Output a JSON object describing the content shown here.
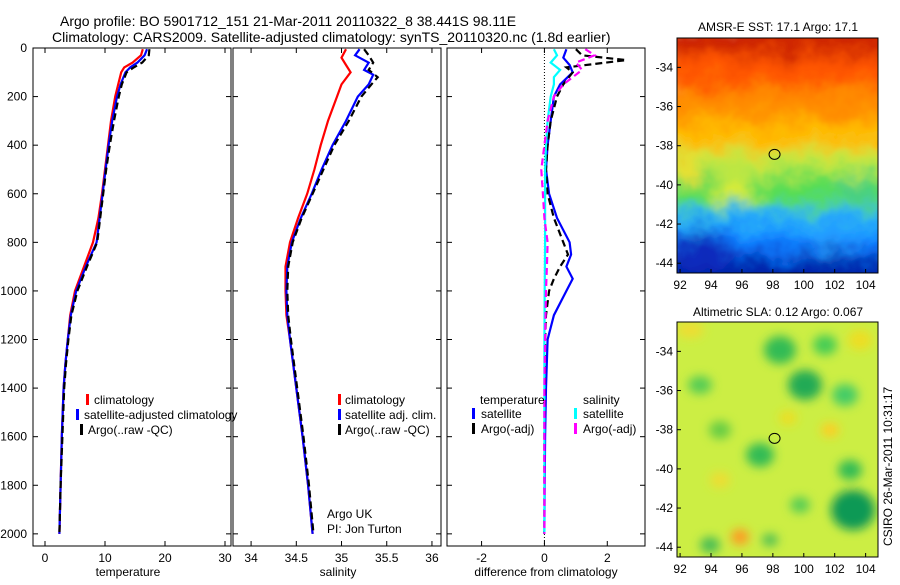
{
  "figure": {
    "title_line1": "Argo profile: BO 5901712_151 21-Mar-2011 20110322_8 38.441S 98.11E",
    "title_line2": "Climatology: CARS2009. Satellite-adjusted climatology: synTS_20110320.nc (1.8d earlier)",
    "credit": "CSIRO 26-Mar-2011 10:31:17",
    "argo_note_line1": "Argo UK",
    "argo_note_line2": "PI: Jon Turton"
  },
  "colors": {
    "climatology": "#ff0000",
    "satellite": "#0000ff",
    "argo": "#000000",
    "satellite_salinity": "#00ffff",
    "argo_salinity": "#ff00ff"
  },
  "chart_data": [
    {
      "type": "line",
      "xlabel": "temperature",
      "ylabel": "",
      "xlim": [
        -2,
        31
      ],
      "ylim": [
        2050,
        0
      ],
      "x_ticks": [
        0,
        10,
        20,
        30
      ],
      "y_ticks": [
        0,
        200,
        400,
        600,
        800,
        1000,
        1200,
        1400,
        1600,
        1800,
        2000
      ],
      "legend": [
        "climatology",
        "satellite-adjusted climatology",
        "Argo(..raw -QC)"
      ],
      "series": [
        {
          "name": "climatology",
          "color": "#ff0000",
          "depth": [
            5,
            30,
            60,
            80,
            100,
            150,
            200,
            300,
            400,
            500,
            600,
            700,
            800,
            900,
            1000,
            1100,
            1200,
            1300,
            1400,
            1600,
            1800,
            2000
          ],
          "values": [
            16.3,
            16.0,
            14.6,
            13.2,
            12.7,
            12.2,
            11.7,
            11.0,
            10.5,
            10.0,
            9.5,
            8.9,
            8.0,
            6.5,
            5.0,
            4.2,
            3.8,
            3.4,
            3.1,
            2.8,
            2.6,
            2.4
          ]
        },
        {
          "name": "satellite-adjusted climatology",
          "color": "#0000ff",
          "depth": [
            5,
            30,
            60,
            80,
            100,
            150,
            200,
            300,
            400,
            500,
            600,
            700,
            800,
            900,
            1000,
            1100,
            1200,
            1300,
            1400,
            1600,
            1800,
            2000
          ],
          "values": [
            17.0,
            16.6,
            15.4,
            14.2,
            13.4,
            12.6,
            12.0,
            11.2,
            10.6,
            10.1,
            9.6,
            9.1,
            8.6,
            6.8,
            5.2,
            4.3,
            3.8,
            3.4,
            3.1,
            2.8,
            2.6,
            2.4
          ]
        },
        {
          "name": "Argo(..raw -QC)",
          "color": "#000000",
          "depth": [
            5,
            30,
            60,
            80,
            100,
            150,
            200,
            300,
            400,
            500,
            600,
            700,
            800,
            900,
            1000,
            1100,
            1200,
            1300,
            1400,
            1600,
            1800,
            2000
          ],
          "values": [
            17.4,
            17.3,
            16.2,
            14.8,
            13.6,
            12.8,
            12.3,
            11.5,
            10.8,
            10.2,
            9.7,
            9.2,
            8.7,
            7.0,
            5.4,
            4.4,
            3.9,
            3.5,
            3.2,
            2.9,
            2.6,
            2.4
          ]
        }
      ]
    },
    {
      "type": "line",
      "xlabel": "salinity",
      "ylabel": "",
      "xlim": [
        33.8,
        36.1
      ],
      "ylim": [
        2050,
        0
      ],
      "x_ticks": [
        34,
        34.5,
        35,
        35.5,
        36
      ],
      "legend": [
        "climatology",
        "satellite adj. clim.",
        "Argo(..raw -QC)"
      ],
      "series": [
        {
          "name": "climatology",
          "color": "#ff0000",
          "depth": [
            5,
            40,
            70,
            100,
            150,
            200,
            300,
            400,
            500,
            600,
            700,
            800,
            900,
            1000,
            1100,
            1200,
            1400,
            1600,
            1800,
            2000
          ],
          "values": [
            35.05,
            35.0,
            35.05,
            35.1,
            35.0,
            34.95,
            34.85,
            34.77,
            34.7,
            34.62,
            34.52,
            34.43,
            34.38,
            34.38,
            34.39,
            34.43,
            34.5,
            34.57,
            34.63,
            34.68
          ]
        },
        {
          "name": "satellite adj. clim.",
          "color": "#0000ff",
          "depth": [
            5,
            30,
            60,
            90,
            110,
            150,
            200,
            300,
            400,
            500,
            600,
            700,
            800,
            900,
            1000,
            1100,
            1200,
            1400,
            1600,
            1800,
            2000
          ],
          "values": [
            35.2,
            35.15,
            35.3,
            35.25,
            35.35,
            35.3,
            35.18,
            35.05,
            34.9,
            34.78,
            34.67,
            34.55,
            34.45,
            34.4,
            34.39,
            34.4,
            34.43,
            34.5,
            34.57,
            34.63,
            34.68
          ]
        },
        {
          "name": "Argo(..raw -QC)",
          "color": "#000000",
          "depth": [
            5,
            30,
            60,
            90,
            120,
            150,
            200,
            300,
            400,
            500,
            600,
            700,
            800,
            900,
            1000,
            1100,
            1200,
            1400,
            1600,
            1800,
            2000
          ],
          "values": [
            35.25,
            35.3,
            35.35,
            35.3,
            35.4,
            35.33,
            35.22,
            35.08,
            34.92,
            34.8,
            34.68,
            34.56,
            34.46,
            34.41,
            34.4,
            34.41,
            34.44,
            34.51,
            34.58,
            34.64,
            34.69
          ]
        }
      ]
    },
    {
      "type": "line",
      "xlabel": "difference from climatology",
      "ylabel": "",
      "xlim": [
        -3.1,
        3.2
      ],
      "ylim": [
        2050,
        0
      ],
      "x_ticks": [
        -2,
        0,
        2
      ],
      "legend_groups": [
        "temperature",
        "salinity"
      ],
      "legend": [
        "satellite",
        "Argo(-adj)",
        "satellite",
        "Argo(-adj)"
      ],
      "series": [
        {
          "name": "satellite",
          "group": "temperature",
          "color": "#0000ff",
          "depth": [
            5,
            40,
            70,
            100,
            150,
            200,
            300,
            400,
            500,
            600,
            700,
            800,
            850,
            900,
            950,
            1000,
            1100,
            1200,
            1400,
            1600,
            1800,
            2000
          ],
          "values": [
            0.7,
            0.6,
            0.8,
            0.9,
            0.5,
            0.3,
            0.2,
            0.1,
            0.05,
            0.15,
            0.4,
            0.8,
            0.85,
            0.7,
            0.9,
            0.7,
            0.3,
            0.1,
            0.05,
            0.02,
            0.01,
            0.0
          ]
        },
        {
          "name": "Argo(-adj)",
          "group": "temperature",
          "color": "#000000",
          "depth": [
            5,
            30,
            50,
            80,
            100,
            150,
            200,
            300,
            400,
            500,
            600,
            700,
            800,
            850,
            900,
            950,
            1000,
            1100,
            1200,
            1400,
            1600,
            1800,
            2000
          ],
          "values": [
            1.0,
            1.2,
            2.6,
            0.7,
            0.9,
            0.6,
            0.4,
            0.2,
            0.1,
            0.05,
            0.1,
            0.3,
            0.6,
            0.75,
            0.5,
            0.3,
            0.15,
            0.05,
            0.02,
            0.01,
            0.0,
            0.0,
            0.0
          ]
        },
        {
          "name": "satellite",
          "group": "salinity",
          "color": "#00ffff",
          "depth": [
            5,
            30,
            60,
            90,
            120,
            150,
            200,
            300,
            400,
            500,
            600,
            700,
            800,
            1000,
            1200,
            1400,
            1600,
            1800,
            2000
          ],
          "values": [
            0.3,
            0.4,
            0.2,
            0.5,
            0.3,
            0.3,
            0.2,
            0.1,
            0.05,
            0.02,
            0.02,
            0.02,
            0.02,
            0.01,
            0.0,
            0.0,
            0.0,
            0.0,
            0.0
          ]
        },
        {
          "name": "Argo(-adj)",
          "group": "salinity",
          "color": "#ff00ff",
          "depth": [
            5,
            30,
            60,
            90,
            120,
            150,
            200,
            300,
            400,
            500,
            600,
            700,
            800,
            900,
            1000,
            1200,
            1400,
            1600,
            1800,
            2000
          ],
          "values": [
            1.3,
            1.6,
            1.0,
            1.2,
            0.9,
            0.6,
            0.3,
            0.1,
            0.0,
            -0.1,
            -0.05,
            0.0,
            0.1,
            0.08,
            0.05,
            0.02,
            0.0,
            0.0,
            0.0,
            0.0
          ]
        }
      ]
    },
    {
      "type": "heatmap",
      "title": "AMSR-E SST: 17.1 Argo: 17.1",
      "x_ticks": [
        92,
        94,
        96,
        98,
        100,
        102,
        104
      ],
      "y_ticks": [
        -34,
        -36,
        -38,
        -40,
        -42,
        -44
      ],
      "xlim": [
        91.8,
        104.8
      ],
      "ylim": [
        -44.5,
        -32.5
      ],
      "marker": {
        "lon": 98.11,
        "lat": -38.441
      }
    },
    {
      "type": "heatmap",
      "title": "Altimetric SLA: 0.12 Argo: 0.067",
      "x_ticks": [
        92,
        94,
        96,
        98,
        100,
        102,
        104
      ],
      "y_ticks": [
        -34,
        -36,
        -38,
        -40,
        -42,
        -44
      ],
      "xlim": [
        91.8,
        104.8
      ],
      "ylim": [
        -44.5,
        -32.5
      ],
      "marker": {
        "lon": 98.11,
        "lat": -38.441
      }
    }
  ]
}
